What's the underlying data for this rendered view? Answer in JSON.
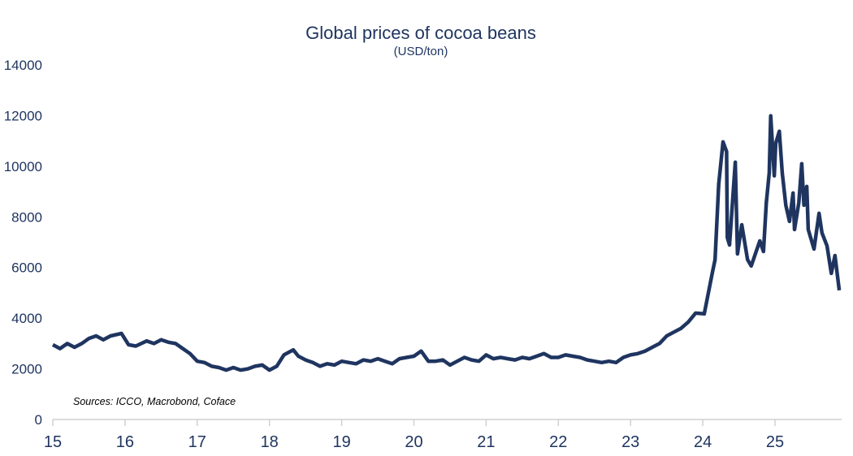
{
  "chart_data": {
    "type": "line",
    "title": "Global prices of cocoa beans",
    "subtitle": "(USD/ton)",
    "source": "Sources: ICCO, Macrobond, Coface",
    "xlabel": "",
    "ylabel": "",
    "xlim": [
      15,
      25.9
    ],
    "ylim": [
      0,
      14000
    ],
    "x_ticks": [
      "15",
      "16",
      "17",
      "18",
      "19",
      "20",
      "21",
      "22",
      "23",
      "24",
      "25"
    ],
    "y_ticks": [
      "0",
      "2000",
      "4000",
      "6000",
      "8000",
      "10000",
      "12000",
      "14000"
    ],
    "grid": false,
    "legend": "none",
    "color": "#1f3560",
    "series": [
      {
        "x": [
          15.0,
          15.1,
          15.2,
          15.3,
          15.4,
          15.5,
          15.6,
          15.7,
          15.8,
          15.95,
          16.05,
          16.15,
          16.3,
          16.4,
          16.5,
          16.6,
          16.7,
          16.8,
          16.9,
          17.0,
          17.1,
          17.2,
          17.3,
          17.4,
          17.5,
          17.6,
          17.7,
          17.8,
          17.9,
          18.0,
          18.1,
          18.2,
          18.33,
          18.4,
          18.5,
          18.6,
          18.7,
          18.8,
          18.9,
          19.0,
          19.1,
          19.2,
          19.3,
          19.4,
          19.5,
          19.6,
          19.7,
          19.8,
          19.9,
          20.0,
          20.1,
          20.2,
          20.3,
          20.4,
          20.5,
          20.6,
          20.7,
          20.8,
          20.9,
          21.0,
          21.1,
          21.2,
          21.3,
          21.4,
          21.5,
          21.6,
          21.7,
          21.8,
          21.9,
          22.0,
          22.1,
          22.2,
          22.3,
          22.4,
          22.5,
          22.6,
          22.7,
          22.8,
          22.9,
          23.0,
          23.1,
          23.2,
          23.3,
          23.4,
          23.5,
          23.6,
          23.7,
          23.8,
          23.9,
          24.02,
          24.13,
          24.17,
          24.22,
          24.28,
          24.33,
          24.34,
          24.37,
          24.45,
          24.48,
          24.54,
          24.62,
          24.67,
          24.79,
          24.84,
          24.88,
          24.92,
          24.94,
          24.99,
          25.01,
          25.06,
          25.1,
          25.15,
          25.2,
          25.25,
          25.27,
          25.33,
          25.37,
          25.4,
          25.44,
          25.46,
          25.54,
          25.61,
          25.65,
          25.72,
          25.78,
          25.83,
          25.89
        ],
        "y": [
          2950,
          2800,
          3000,
          2850,
          3000,
          3200,
          3300,
          3150,
          3300,
          3400,
          2950,
          2900,
          3100,
          3000,
          3150,
          3050,
          3000,
          2800,
          2600,
          2300,
          2250,
          2100,
          2050,
          1950,
          2050,
          1950,
          2000,
          2100,
          2150,
          1950,
          2100,
          2550,
          2750,
          2500,
          2350,
          2250,
          2100,
          2200,
          2150,
          2300,
          2250,
          2200,
          2350,
          2300,
          2400,
          2300,
          2200,
          2400,
          2450,
          2500,
          2700,
          2300,
          2300,
          2350,
          2150,
          2300,
          2450,
          2350,
          2300,
          2550,
          2400,
          2450,
          2400,
          2350,
          2450,
          2400,
          2500,
          2600,
          2450,
          2450,
          2550,
          2500,
          2450,
          2350,
          2300,
          2250,
          2300,
          2250,
          2450,
          2550,
          2600,
          2700,
          2850,
          3000,
          3300,
          3450,
          3600,
          3850,
          4200,
          4170,
          5770,
          6310,
          9290,
          10960,
          10580,
          7180,
          6890,
          10160,
          6540,
          7690,
          6310,
          6060,
          7050,
          6630,
          8560,
          9740,
          11990,
          9620,
          10900,
          11380,
          9740,
          8460,
          7820,
          8940,
          7500,
          8560,
          10100,
          8460,
          9200,
          7500,
          6730,
          8140,
          7370,
          6860,
          5770,
          6470,
          5100
        ]
      }
    ]
  }
}
